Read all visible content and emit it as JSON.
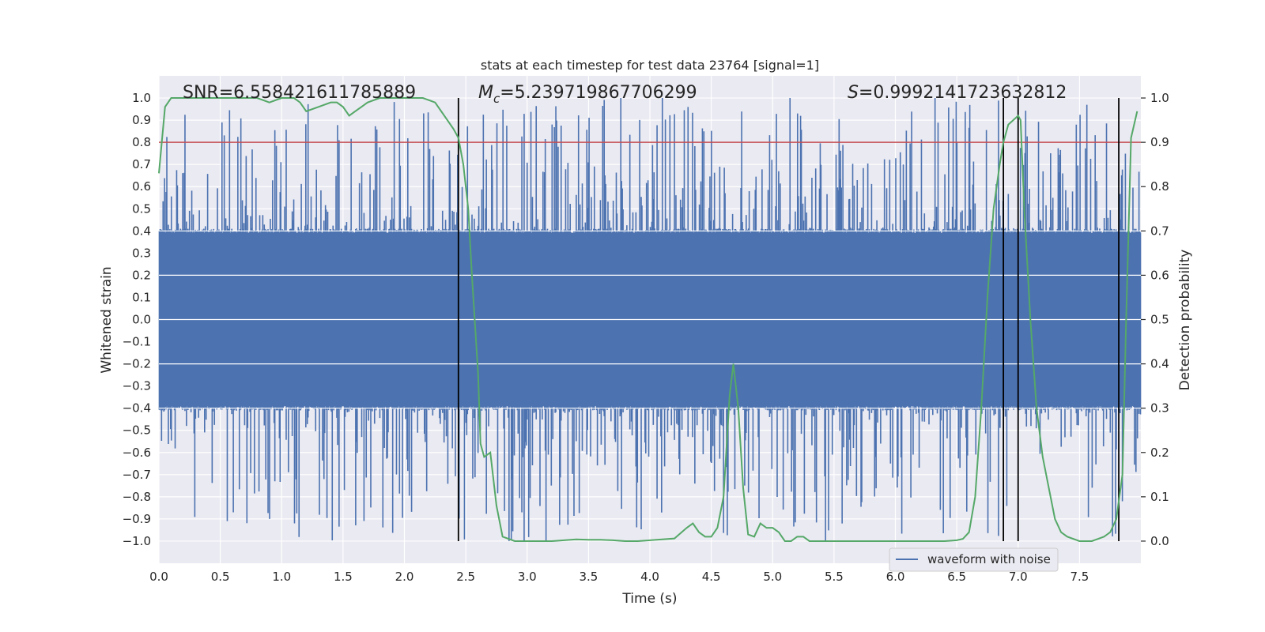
{
  "chart_data": {
    "type": "line",
    "title": "stats at each timestep for test data 23764 [signal=1]",
    "xlabel": "Time (s)",
    "ylabel": "Whitened strain",
    "y2label": "Detection probability",
    "xlim": [
      0.0,
      8.0
    ],
    "ylim": [
      -1.1,
      1.1
    ],
    "y2lim": [
      -0.05,
      1.05
    ],
    "x_ticks": [
      "0.0",
      "0.5",
      "1.0",
      "1.5",
      "2.0",
      "2.5",
      "3.0",
      "3.5",
      "4.0",
      "4.5",
      "5.0",
      "5.5",
      "6.0",
      "6.5",
      "7.0",
      "7.5"
    ],
    "y_ticks": [
      "1.0",
      "0.9",
      "0.8",
      "0.7",
      "0.6",
      "0.5",
      "0.4",
      "0.3",
      "0.2",
      "0.1",
      "0.0",
      "−0.1",
      "−0.2",
      "−0.3",
      "−0.4",
      "−0.5",
      "−0.6",
      "−0.7",
      "−0.8",
      "−0.9",
      "−1.0"
    ],
    "y2_ticks": [
      "1.0",
      "0.9",
      "0.8",
      "0.7",
      "0.6",
      "0.5",
      "0.4",
      "0.3",
      "0.2",
      "0.1",
      "0.0"
    ],
    "annotations": {
      "snr": "SNR=6.558421611785889",
      "mc_symbol": "M",
      "mc_sub": "c",
      "mc_value": "=5.239719867706299",
      "s_symbol": "S",
      "s_value": "=0.9992141723632812"
    },
    "threshold": {
      "y2": 0.9,
      "color": "#c44e52"
    },
    "vertical_lines_x": [
      2.44,
      6.88,
      7.0,
      7.82
    ],
    "legend": {
      "label": "waveform with noise",
      "location": "lower-right"
    },
    "series": [
      {
        "name": "waveform with noise",
        "color": "#4c72b0",
        "envelope": {
          "base_band": [
            -0.39,
            0.39
          ],
          "max_positive_spike": 1.0,
          "max_negative_spike": -1.0,
          "spike_seed": 23764
        }
      },
      {
        "name": "Detection probability",
        "axis": "right",
        "color": "#55a868",
        "x": [
          0.0,
          0.05,
          0.1,
          0.2,
          0.4,
          0.6,
          0.8,
          0.9,
          1.0,
          1.1,
          1.15,
          1.2,
          1.3,
          1.4,
          1.45,
          1.5,
          1.55,
          1.6,
          1.65,
          1.7,
          1.8,
          1.9,
          2.0,
          2.1,
          2.15,
          2.2,
          2.25,
          2.3,
          2.35,
          2.4,
          2.44,
          2.48,
          2.52,
          2.55,
          2.6,
          2.62,
          2.65,
          2.7,
          2.75,
          2.8,
          2.9,
          3.0,
          3.1,
          3.2,
          3.3,
          3.4,
          3.5,
          3.6,
          3.7,
          3.8,
          3.9,
          4.0,
          4.1,
          4.2,
          4.3,
          4.35,
          4.4,
          4.45,
          4.5,
          4.55,
          4.6,
          4.65,
          4.68,
          4.72,
          4.76,
          4.8,
          4.85,
          4.9,
          4.95,
          5.0,
          5.05,
          5.1,
          5.15,
          5.2,
          5.25,
          5.3,
          5.4,
          5.6,
          5.8,
          6.0,
          6.2,
          6.4,
          6.5,
          6.55,
          6.6,
          6.65,
          6.7,
          6.75,
          6.8,
          6.85,
          6.88,
          6.92,
          6.96,
          7.0,
          7.02,
          7.05,
          7.1,
          7.15,
          7.2,
          7.25,
          7.3,
          7.35,
          7.4,
          7.5,
          7.6,
          7.65,
          7.7,
          7.75,
          7.8,
          7.85,
          7.88,
          7.92,
          7.97
        ],
        "values": [
          0.83,
          0.98,
          1.0,
          1.0,
          1.0,
          1.0,
          1.0,
          0.99,
          1.0,
          1.0,
          0.99,
          0.97,
          0.98,
          0.99,
          0.99,
          0.98,
          0.96,
          0.97,
          0.98,
          0.99,
          1.0,
          1.0,
          1.0,
          1.0,
          1.0,
          0.995,
          0.99,
          0.97,
          0.95,
          0.93,
          0.91,
          0.85,
          0.75,
          0.6,
          0.38,
          0.22,
          0.19,
          0.2,
          0.08,
          0.01,
          0.0,
          0.0,
          0.0,
          0.0,
          0.002,
          0.004,
          0.003,
          0.003,
          0.002,
          0.0,
          0.0,
          0.002,
          0.004,
          0.006,
          0.03,
          0.04,
          0.02,
          0.01,
          0.01,
          0.03,
          0.1,
          0.33,
          0.4,
          0.3,
          0.12,
          0.015,
          0.01,
          0.04,
          0.03,
          0.03,
          0.02,
          0.0,
          0.0,
          0.01,
          0.01,
          0.0,
          0.0,
          0.0,
          0.0,
          0.0,
          0.0,
          0.0,
          0.002,
          0.005,
          0.02,
          0.1,
          0.3,
          0.55,
          0.75,
          0.85,
          0.9,
          0.94,
          0.95,
          0.96,
          0.95,
          0.75,
          0.5,
          0.3,
          0.19,
          0.12,
          0.05,
          0.02,
          0.01,
          0.0,
          0.0,
          0.005,
          0.01,
          0.02,
          0.05,
          0.15,
          0.5,
          0.91,
          0.97
        ]
      }
    ]
  }
}
